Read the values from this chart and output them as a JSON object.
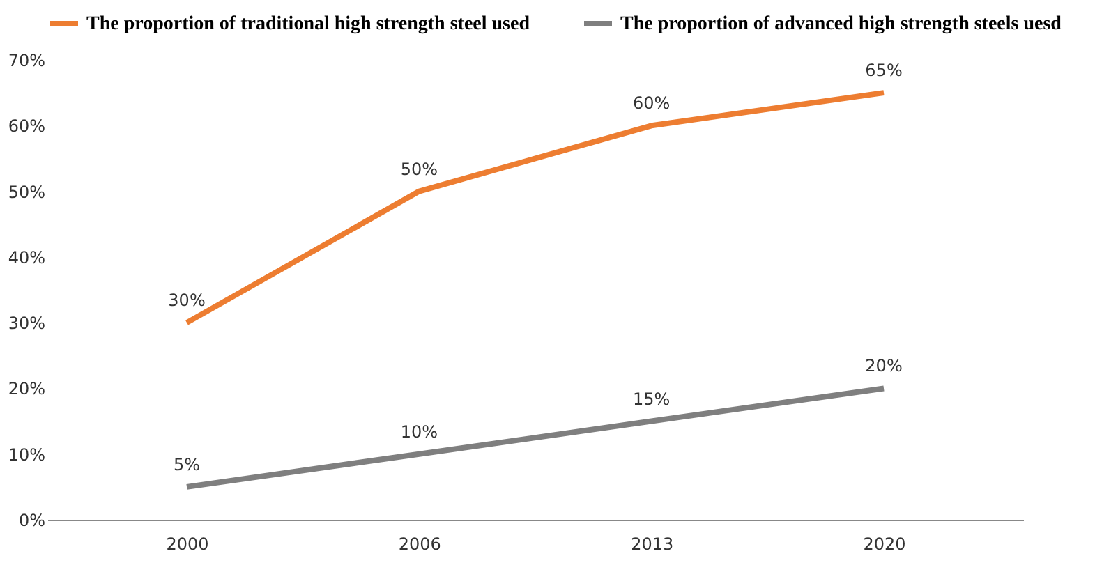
{
  "chart_data": {
    "type": "line",
    "categories": [
      "2000",
      "2006",
      "2013",
      "2020"
    ],
    "series": [
      {
        "name": "The proportion of traditional high strength steel used",
        "color": "#ed7d31",
        "values": [
          30,
          50,
          60,
          65
        ],
        "value_labels": [
          "30%",
          "50%",
          "60%",
          "65%"
        ]
      },
      {
        "name": "The proportion of advanced high strength steels uesd",
        "color": "#7f7f7f",
        "values": [
          5,
          10,
          15,
          20
        ],
        "value_labels": [
          "5%",
          "10%",
          "15%",
          "20%"
        ]
      }
    ],
    "ylim": [
      0,
      70
    ],
    "yticks": [
      {
        "value": 0,
        "label": "0%"
      },
      {
        "value": 10,
        "label": "10%"
      },
      {
        "value": 20,
        "label": "20%"
      },
      {
        "value": 30,
        "label": "30%"
      },
      {
        "value": 40,
        "label": "40%"
      },
      {
        "value": 50,
        "label": "50%"
      },
      {
        "value": 60,
        "label": "60%"
      },
      {
        "value": 70,
        "label": "70%"
      }
    ],
    "grid": false,
    "legend": "top",
    "marker": "none",
    "line_style": "solid"
  }
}
